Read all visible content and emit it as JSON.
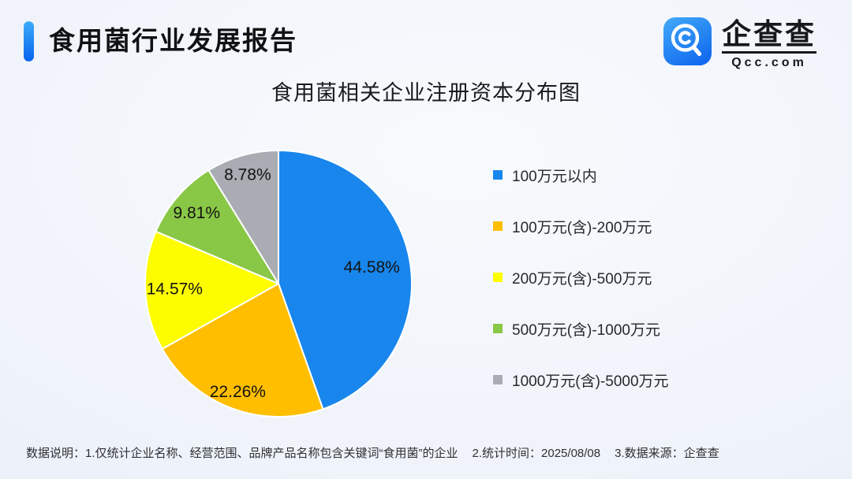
{
  "page": {
    "report_title": "食用菌行业发展报告",
    "brand": {
      "name": "企查查",
      "domain": "Qcc.com"
    },
    "footer": {
      "note1": "数据说明：1.仅统计企业名称、经营范围、品牌产品名称包含关键词“食用菌”的企业",
      "note2": "2.统计时间：2025/08/08",
      "note3": "3.数据来源：企查查"
    }
  },
  "chart_data": {
    "type": "pie",
    "title": "食用菌相关企业注册资本分布图",
    "categories": [
      "100万元以内",
      "100万元(含)-200万元",
      "200万元(含)-500万元",
      "500万元(含)-1000万元",
      "1000万元(含)-5000万元"
    ],
    "values": [
      44.58,
      22.26,
      14.57,
      9.81,
      8.78
    ],
    "labels": [
      "44.58%",
      "22.26%",
      "14.57%",
      "9.81%",
      "8.78%"
    ],
    "unit": "%",
    "colors": [
      "#1886EC",
      "#FFBE00",
      "#FDFD00",
      "#89C746",
      "#A9ADB3"
    ],
    "start_angle_deg": 0,
    "direction": "clockwise",
    "legend_position": "right",
    "label_radius": [
      0.71,
      0.87,
      0.78,
      0.81,
      0.85
    ]
  }
}
